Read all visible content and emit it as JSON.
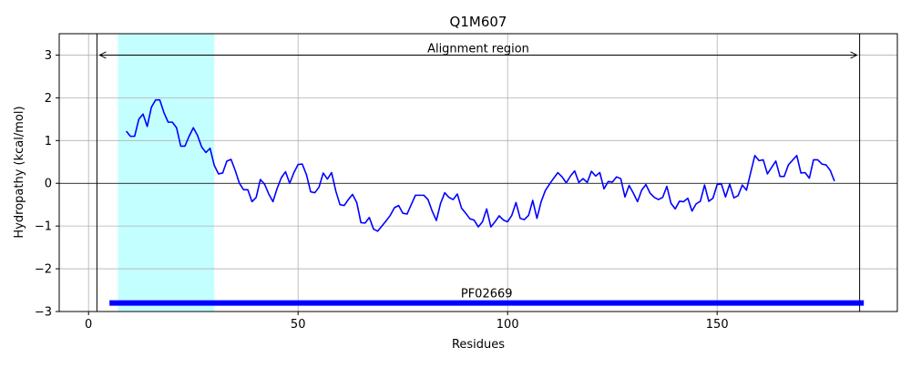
{
  "chart_data": {
    "type": "line",
    "title": "Q1M607",
    "xlabel": "Residues",
    "ylabel": "Hydropathy (kcal/mol)",
    "xlim": [
      -7,
      193
    ],
    "ylim": [
      -3,
      3.5
    ],
    "xticks": [
      0,
      50,
      100,
      150
    ],
    "yticks": [
      -3,
      -2,
      -1,
      0,
      1,
      2,
      3
    ],
    "grid": true,
    "series": [
      {
        "color": "#0000ff",
        "x": [
          9,
          10,
          11,
          12,
          13,
          14,
          15,
          16,
          17,
          18,
          19,
          20,
          21,
          22,
          23,
          24,
          25,
          26,
          27,
          28,
          29,
          30,
          31,
          32,
          33,
          34,
          35,
          36,
          37,
          38,
          39,
          40,
          41,
          42,
          43,
          44,
          45,
          46,
          47,
          48,
          49,
          50,
          51,
          52,
          53,
          54,
          55,
          56,
          57,
          58,
          59,
          60,
          61,
          62,
          63,
          64,
          65,
          66,
          67,
          68,
          69,
          70,
          71,
          72,
          73,
          74,
          75,
          76,
          77,
          78,
          79,
          80,
          81,
          82,
          83,
          84,
          85,
          86,
          87,
          88,
          89,
          90,
          91,
          92,
          93,
          94,
          95,
          96,
          97,
          98,
          99,
          100,
          101,
          102,
          103,
          104,
          105,
          106,
          107,
          108,
          109,
          110,
          111,
          112,
          113,
          114,
          115,
          116,
          117,
          118,
          119,
          120,
          121,
          122,
          123,
          124,
          125,
          126,
          127,
          128,
          129,
          130,
          131,
          132,
          133,
          134,
          135,
          136,
          137,
          138,
          139,
          140,
          141,
          142,
          143,
          144,
          145,
          146,
          147,
          148,
          149,
          150,
          151,
          152,
          153,
          154,
          155,
          156,
          157,
          158,
          159,
          160,
          161,
          162,
          163,
          164,
          165,
          166,
          167,
          168,
          169,
          170,
          171,
          172,
          173,
          174,
          175,
          176,
          177,
          178
        ],
        "y": [
          1.22,
          1.1,
          1.1,
          1.5,
          1.62,
          1.33,
          1.78,
          1.95,
          1.95,
          1.65,
          1.43,
          1.43,
          1.3,
          0.87,
          0.87,
          1.1,
          1.3,
          1.12,
          0.85,
          0.72,
          0.82,
          0.42,
          0.22,
          0.24,
          0.52,
          0.56,
          0.3,
          0.0,
          -0.15,
          -0.15,
          -0.43,
          -0.33,
          0.09,
          -0.02,
          -0.25,
          -0.43,
          -0.12,
          0.13,
          0.27,
          0.0,
          0.25,
          0.44,
          0.45,
          0.2,
          -0.2,
          -0.22,
          -0.09,
          0.24,
          0.1,
          0.25,
          -0.18,
          -0.5,
          -0.52,
          -0.38,
          -0.26,
          -0.45,
          -0.92,
          -0.93,
          -0.8,
          -1.07,
          -1.12,
          -1.0,
          -0.88,
          -0.75,
          -0.57,
          -0.52,
          -0.7,
          -0.72,
          -0.5,
          -0.28,
          -0.28,
          -0.28,
          -0.38,
          -0.65,
          -0.87,
          -0.47,
          -0.22,
          -0.33,
          -0.38,
          -0.25,
          -0.58,
          -0.7,
          -0.83,
          -0.86,
          -1.02,
          -0.9,
          -0.6,
          -1.02,
          -0.9,
          -0.76,
          -0.86,
          -0.9,
          -0.75,
          -0.45,
          -0.82,
          -0.85,
          -0.75,
          -0.4,
          -0.82,
          -0.43,
          -0.17,
          -0.02,
          0.12,
          0.25,
          0.15,
          0.01,
          0.17,
          0.29,
          0.02,
          0.11,
          0.02,
          0.28,
          0.17,
          0.25,
          -0.13,
          0.04,
          0.03,
          0.15,
          0.11,
          -0.32,
          -0.05,
          -0.23,
          -0.43,
          -0.16,
          -0.03,
          -0.23,
          -0.33,
          -0.38,
          -0.33,
          -0.07,
          -0.47,
          -0.6,
          -0.42,
          -0.43,
          -0.35,
          -0.65,
          -0.48,
          -0.42,
          -0.04,
          -0.42,
          -0.35,
          -0.03,
          -0.01,
          -0.32,
          -0.02,
          -0.34,
          -0.29,
          -0.04,
          -0.16,
          0.25,
          0.65,
          0.53,
          0.55,
          0.22,
          0.37,
          0.52,
          0.16,
          0.16,
          0.43,
          0.54,
          0.65,
          0.24,
          0.25,
          0.12,
          0.55,
          0.55,
          0.45,
          0.43,
          0.3,
          0.05
        ]
      }
    ],
    "highlight_region": {
      "x_start": 7,
      "x_end": 30,
      "color": "#c4ffff"
    },
    "alignment_region": {
      "label": "Alignment region",
      "x_start": 2,
      "x_end": 184,
      "y": 3
    },
    "domain_bar": {
      "label": "PF02669",
      "x_start": 5,
      "x_end": 185,
      "y": -2.8,
      "color": "#0000ff"
    }
  }
}
